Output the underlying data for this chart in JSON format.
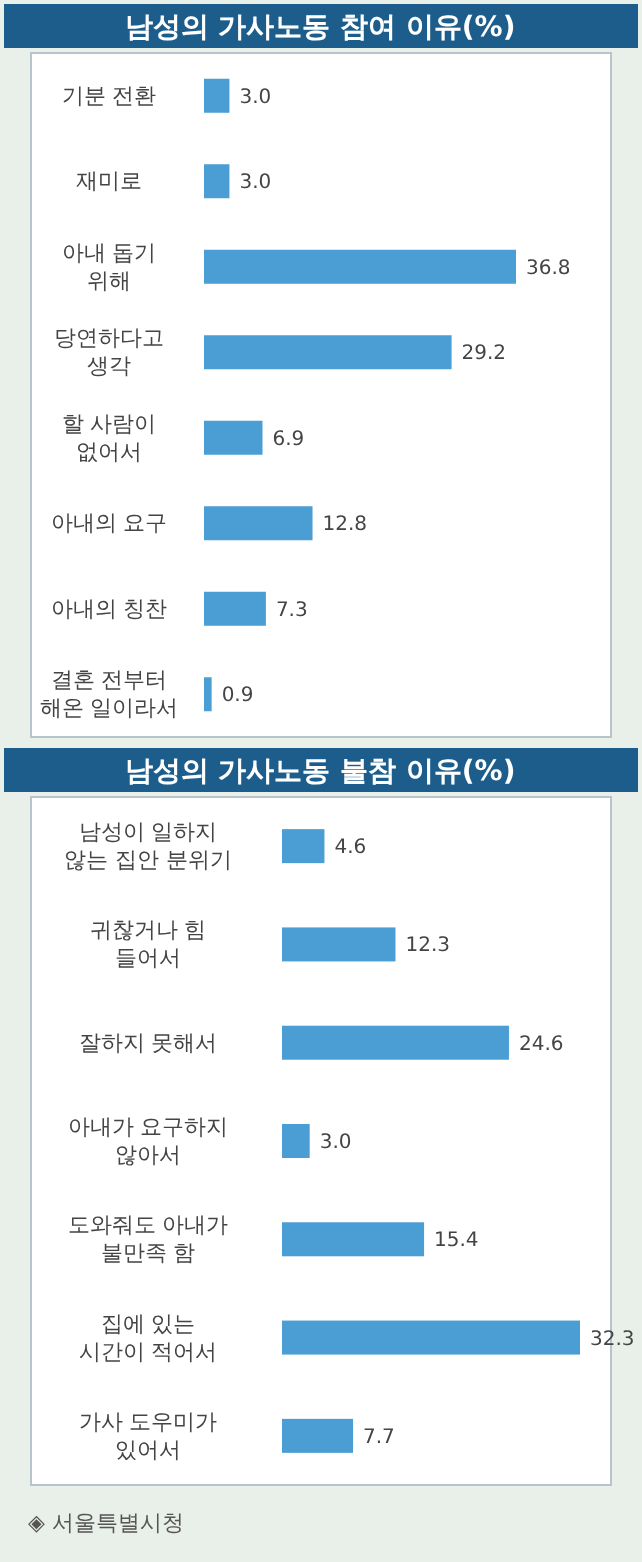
{
  "chart_data": [
    {
      "type": "bar",
      "orientation": "horizontal",
      "title": "남성의 가사노동 참여 이유(%)",
      "categories": [
        "기분 전환",
        "재미로",
        "아내 돕기\n위해",
        "당연하다고\n생각",
        "할 사람이\n없어서",
        "아내의 요구",
        "아내의 칭찬",
        "결혼 전부터\n해온 일이라서"
      ],
      "values": [
        3.0,
        3.0,
        36.8,
        29.2,
        6.9,
        12.8,
        7.3,
        0.9
      ],
      "value_labels": [
        "3.0",
        "3.0",
        "36.8",
        "29.2",
        "6.9",
        "12.8",
        "7.3",
        "0.9"
      ],
      "color": "#4a9ed3"
    },
    {
      "type": "bar",
      "orientation": "horizontal",
      "title": "남성의 가사노동 불참 이유(%)",
      "categories": [
        "남성이 일하지\n않는 집안 분위기",
        "귀찮거나 힘\n들어서",
        "잘하지 못해서",
        "아내가 요구하지\n않아서",
        "도와줘도 아내가\n불만족 함",
        "집에 있는\n시간이 적어서",
        "가사 도우미가\n있어서"
      ],
      "values": [
        4.6,
        12.3,
        24.6,
        3.0,
        15.4,
        32.3,
        7.7
      ],
      "value_labels": [
        "4.6",
        "12.3",
        "24.6",
        "3.0",
        "15.4",
        "32.3",
        "7.7"
      ],
      "color": "#4a9ed3",
      "annotations": [
        "◈ 서울특별시청"
      ]
    }
  ]
}
